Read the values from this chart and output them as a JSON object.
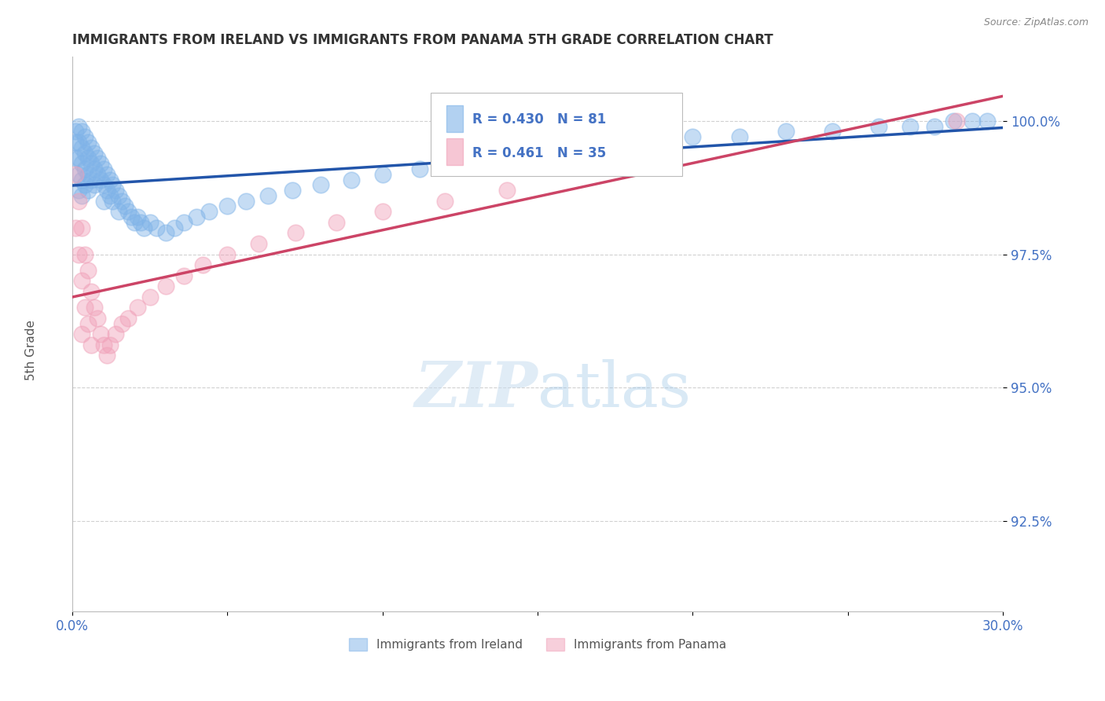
{
  "title": "IMMIGRANTS FROM IRELAND VS IMMIGRANTS FROM PANAMA 5TH GRADE CORRELATION CHART",
  "source": "Source: ZipAtlas.com",
  "ylabel": "5th Grade",
  "xmin": 0.0,
  "xmax": 0.3,
  "ymin": 0.908,
  "ymax": 1.012,
  "yticks": [
    0.925,
    0.95,
    0.975,
    1.0
  ],
  "ytick_labels": [
    "92.5%",
    "95.0%",
    "97.5%",
    "100.0%"
  ],
  "xticks": [
    0.0,
    0.05,
    0.1,
    0.15,
    0.2,
    0.25,
    0.3
  ],
  "xtick_labels": [
    "0.0%",
    "",
    "",
    "",
    "",
    "",
    "30.0%"
  ],
  "legend_label1": "Immigrants from Ireland",
  "legend_label2": "Immigrants from Panama",
  "R1": 0.43,
  "N1": 81,
  "R2": 0.461,
  "N2": 35,
  "color_ireland": "#7fb3e8",
  "color_panama": "#f0a0b8",
  "line_color_ireland": "#2255aa",
  "line_color_panama": "#cc4466",
  "ireland_x": [
    0.001,
    0.001,
    0.001,
    0.002,
    0.002,
    0.002,
    0.002,
    0.002,
    0.003,
    0.003,
    0.003,
    0.003,
    0.003,
    0.004,
    0.004,
    0.004,
    0.004,
    0.005,
    0.005,
    0.005,
    0.005,
    0.006,
    0.006,
    0.006,
    0.007,
    0.007,
    0.007,
    0.008,
    0.008,
    0.009,
    0.009,
    0.01,
    0.01,
    0.01,
    0.011,
    0.011,
    0.012,
    0.012,
    0.013,
    0.013,
    0.014,
    0.015,
    0.015,
    0.016,
    0.017,
    0.018,
    0.019,
    0.02,
    0.021,
    0.022,
    0.023,
    0.025,
    0.027,
    0.03,
    0.033,
    0.036,
    0.04,
    0.044,
    0.05,
    0.056,
    0.063,
    0.071,
    0.08,
    0.09,
    0.1,
    0.112,
    0.125,
    0.14,
    0.155,
    0.17,
    0.185,
    0.2,
    0.215,
    0.23,
    0.245,
    0.26,
    0.27,
    0.278,
    0.284,
    0.29,
    0.295
  ],
  "ireland_y": [
    0.998,
    0.996,
    0.993,
    0.999,
    0.996,
    0.993,
    0.99,
    0.987,
    0.998,
    0.995,
    0.992,
    0.989,
    0.986,
    0.997,
    0.994,
    0.991,
    0.988,
    0.996,
    0.993,
    0.99,
    0.987,
    0.995,
    0.992,
    0.989,
    0.994,
    0.991,
    0.988,
    0.993,
    0.99,
    0.992,
    0.989,
    0.991,
    0.988,
    0.985,
    0.99,
    0.987,
    0.989,
    0.986,
    0.988,
    0.985,
    0.987,
    0.986,
    0.983,
    0.985,
    0.984,
    0.983,
    0.982,
    0.981,
    0.982,
    0.981,
    0.98,
    0.981,
    0.98,
    0.979,
    0.98,
    0.981,
    0.982,
    0.983,
    0.984,
    0.985,
    0.986,
    0.987,
    0.988,
    0.989,
    0.99,
    0.991,
    0.992,
    0.993,
    0.994,
    0.995,
    0.996,
    0.997,
    0.997,
    0.998,
    0.998,
    0.999,
    0.999,
    0.999,
    1.0,
    1.0,
    1.0
  ],
  "panama_x": [
    0.001,
    0.001,
    0.002,
    0.002,
    0.003,
    0.003,
    0.003,
    0.004,
    0.004,
    0.005,
    0.005,
    0.006,
    0.006,
    0.007,
    0.008,
    0.009,
    0.01,
    0.011,
    0.012,
    0.014,
    0.016,
    0.018,
    0.021,
    0.025,
    0.03,
    0.036,
    0.042,
    0.05,
    0.06,
    0.072,
    0.085,
    0.1,
    0.12,
    0.14,
    0.285
  ],
  "panama_y": [
    0.99,
    0.98,
    0.985,
    0.975,
    0.98,
    0.97,
    0.96,
    0.975,
    0.965,
    0.972,
    0.962,
    0.968,
    0.958,
    0.965,
    0.963,
    0.96,
    0.958,
    0.956,
    0.958,
    0.96,
    0.962,
    0.963,
    0.965,
    0.967,
    0.969,
    0.971,
    0.973,
    0.975,
    0.977,
    0.979,
    0.981,
    0.983,
    0.985,
    0.987,
    1.0
  ]
}
